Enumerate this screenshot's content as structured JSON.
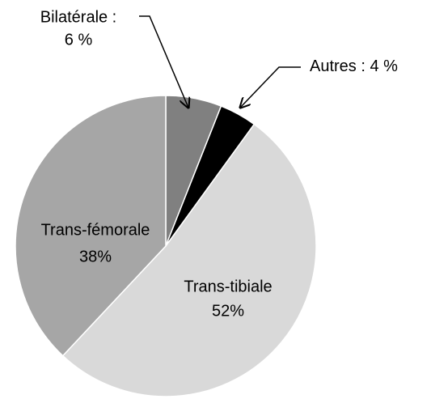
{
  "chart_data": {
    "type": "pie",
    "categories": [
      "Bilatérale :",
      "Autres :",
      "Trans-tibiale",
      "Trans-fémorale"
    ],
    "values": [
      6,
      4,
      52,
      38
    ],
    "value_labels": [
      "6 %",
      "4 %",
      "52%",
      "38%"
    ],
    "colors": [
      "#808080",
      "#000000",
      "#d9d9d9",
      "#a6a6a6"
    ]
  }
}
